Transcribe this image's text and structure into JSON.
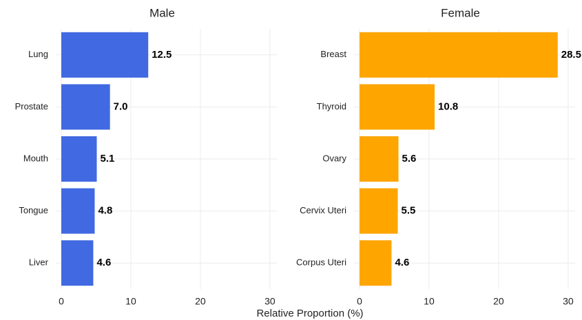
{
  "chart_data": [
    {
      "type": "bar",
      "orientation": "horizontal",
      "title": "Male",
      "categories": [
        "Lung",
        "Prostate",
        "Mouth",
        "Tongue",
        "Liver"
      ],
      "values": [
        12.5,
        7.0,
        5.1,
        4.8,
        4.6
      ],
      "value_labels": [
        "12.5",
        "7.0",
        "5.1",
        "4.8",
        "4.6"
      ],
      "color": "#4169e1",
      "xlim": [
        0,
        31
      ],
      "xticks": [
        0,
        10,
        20,
        30
      ],
      "grid": true
    },
    {
      "type": "bar",
      "orientation": "horizontal",
      "title": "Female",
      "categories": [
        "Breast",
        "Thyroid",
        "Ovary",
        "Cervix Uteri",
        "Corpus Uteri"
      ],
      "values": [
        28.5,
        10.8,
        5.6,
        5.5,
        4.6
      ],
      "color": "#ffa500",
      "xlim": [
        0,
        31
      ],
      "xticks": [
        0,
        10,
        20,
        30
      ],
      "grid": true
    }
  ],
  "xlabel": "Relative Proportion (%)"
}
